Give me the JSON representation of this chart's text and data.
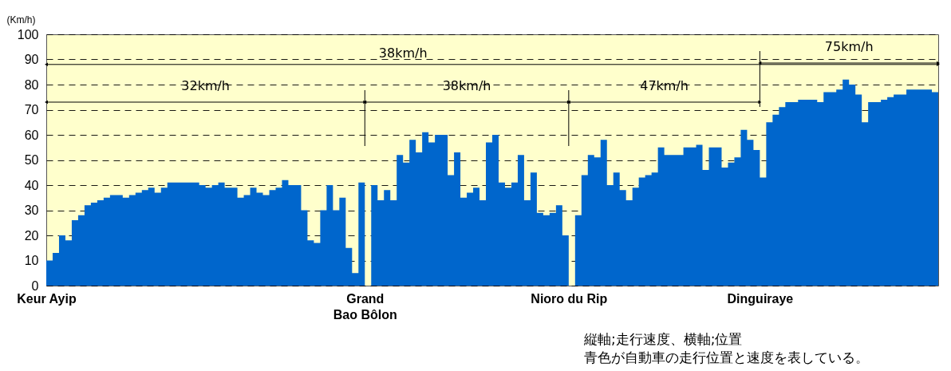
{
  "chart_data": {
    "type": "area",
    "ylabel": "(Km/h)",
    "categories": [
      "Keur Ayip",
      null,
      null,
      null,
      null,
      null,
      null,
      null,
      null,
      null,
      null,
      null,
      null,
      null,
      null,
      null,
      null,
      null,
      null,
      null,
      null,
      null,
      null,
      null,
      null,
      null,
      null,
      null,
      null,
      null,
      null,
      null,
      null,
      null,
      null,
      null,
      null,
      null,
      null,
      null,
      null,
      null,
      null,
      null,
      null,
      null,
      null,
      null,
      null,
      null,
      "Grand\nBao Bôlon",
      null,
      null,
      null,
      null,
      null,
      null,
      null,
      null,
      null,
      null,
      null,
      null,
      null,
      null,
      null,
      null,
      null,
      null,
      null,
      null,
      null,
      null,
      null,
      null,
      null,
      null,
      null,
      null,
      null,
      null,
      null,
      "Nioro du Rip",
      null,
      null,
      null,
      null,
      null,
      null,
      null,
      null,
      null,
      null,
      null,
      null,
      null,
      null,
      null,
      null,
      null,
      null,
      null,
      null,
      null,
      null,
      null,
      null,
      null,
      null,
      null,
      null,
      null,
      "Dinguiraye",
      null,
      null,
      null,
      null,
      null,
      null,
      null,
      null,
      null,
      null,
      null,
      null,
      null,
      null,
      null,
      null,
      null,
      null,
      null,
      null,
      null,
      null,
      null,
      null,
      null,
      null,
      null,
      null
    ],
    "values": [
      10,
      13,
      20,
      18,
      26,
      28,
      32,
      33,
      34,
      35,
      36,
      36,
      35,
      36,
      37,
      38,
      39,
      37,
      39,
      41,
      41,
      41,
      41,
      41,
      40,
      39,
      40,
      41,
      39,
      39,
      35,
      36,
      39,
      37,
      36,
      38,
      39,
      42,
      40,
      40,
      30,
      18,
      17,
      30,
      40,
      30,
      35,
      15,
      5,
      41,
      0,
      40,
      34,
      38,
      34,
      52,
      49,
      58,
      53,
      61,
      57,
      60,
      60,
      44,
      53,
      35,
      37,
      39,
      34,
      57,
      60,
      41,
      39,
      41,
      52,
      34,
      45,
      29,
      28,
      29,
      32,
      20,
      0,
      28,
      44,
      52,
      51,
      58,
      40,
      45,
      38,
      34,
      39,
      43,
      44,
      45,
      55,
      52,
      52,
      52,
      55,
      55,
      56,
      46,
      55,
      55,
      47,
      49,
      51,
      62,
      58,
      54,
      43,
      65,
      68,
      71,
      73,
      73,
      74,
      74,
      74,
      73,
      77,
      77,
      78,
      82,
      80,
      76,
      65,
      73,
      73,
      74,
      75,
      76,
      76,
      78,
      78,
      78,
      78,
      77,
      81
    ],
    "color": "#0066cc",
    "ylim": [
      0,
      100
    ],
    "yticks": [
      0,
      10,
      20,
      30,
      40,
      50,
      60,
      70,
      80,
      90,
      100
    ],
    "grid": "y",
    "ref_lines": [
      {
        "axis": "y",
        "value": 88,
        "label": "38km/h"
      }
    ],
    "annotations": [
      "32km/h",
      "38km/h",
      "47km/h",
      "75km/h",
      "縦軸;走行速度、横軸;位置",
      "青色が自動車の走行位置と速度を表している。"
    ]
  }
}
